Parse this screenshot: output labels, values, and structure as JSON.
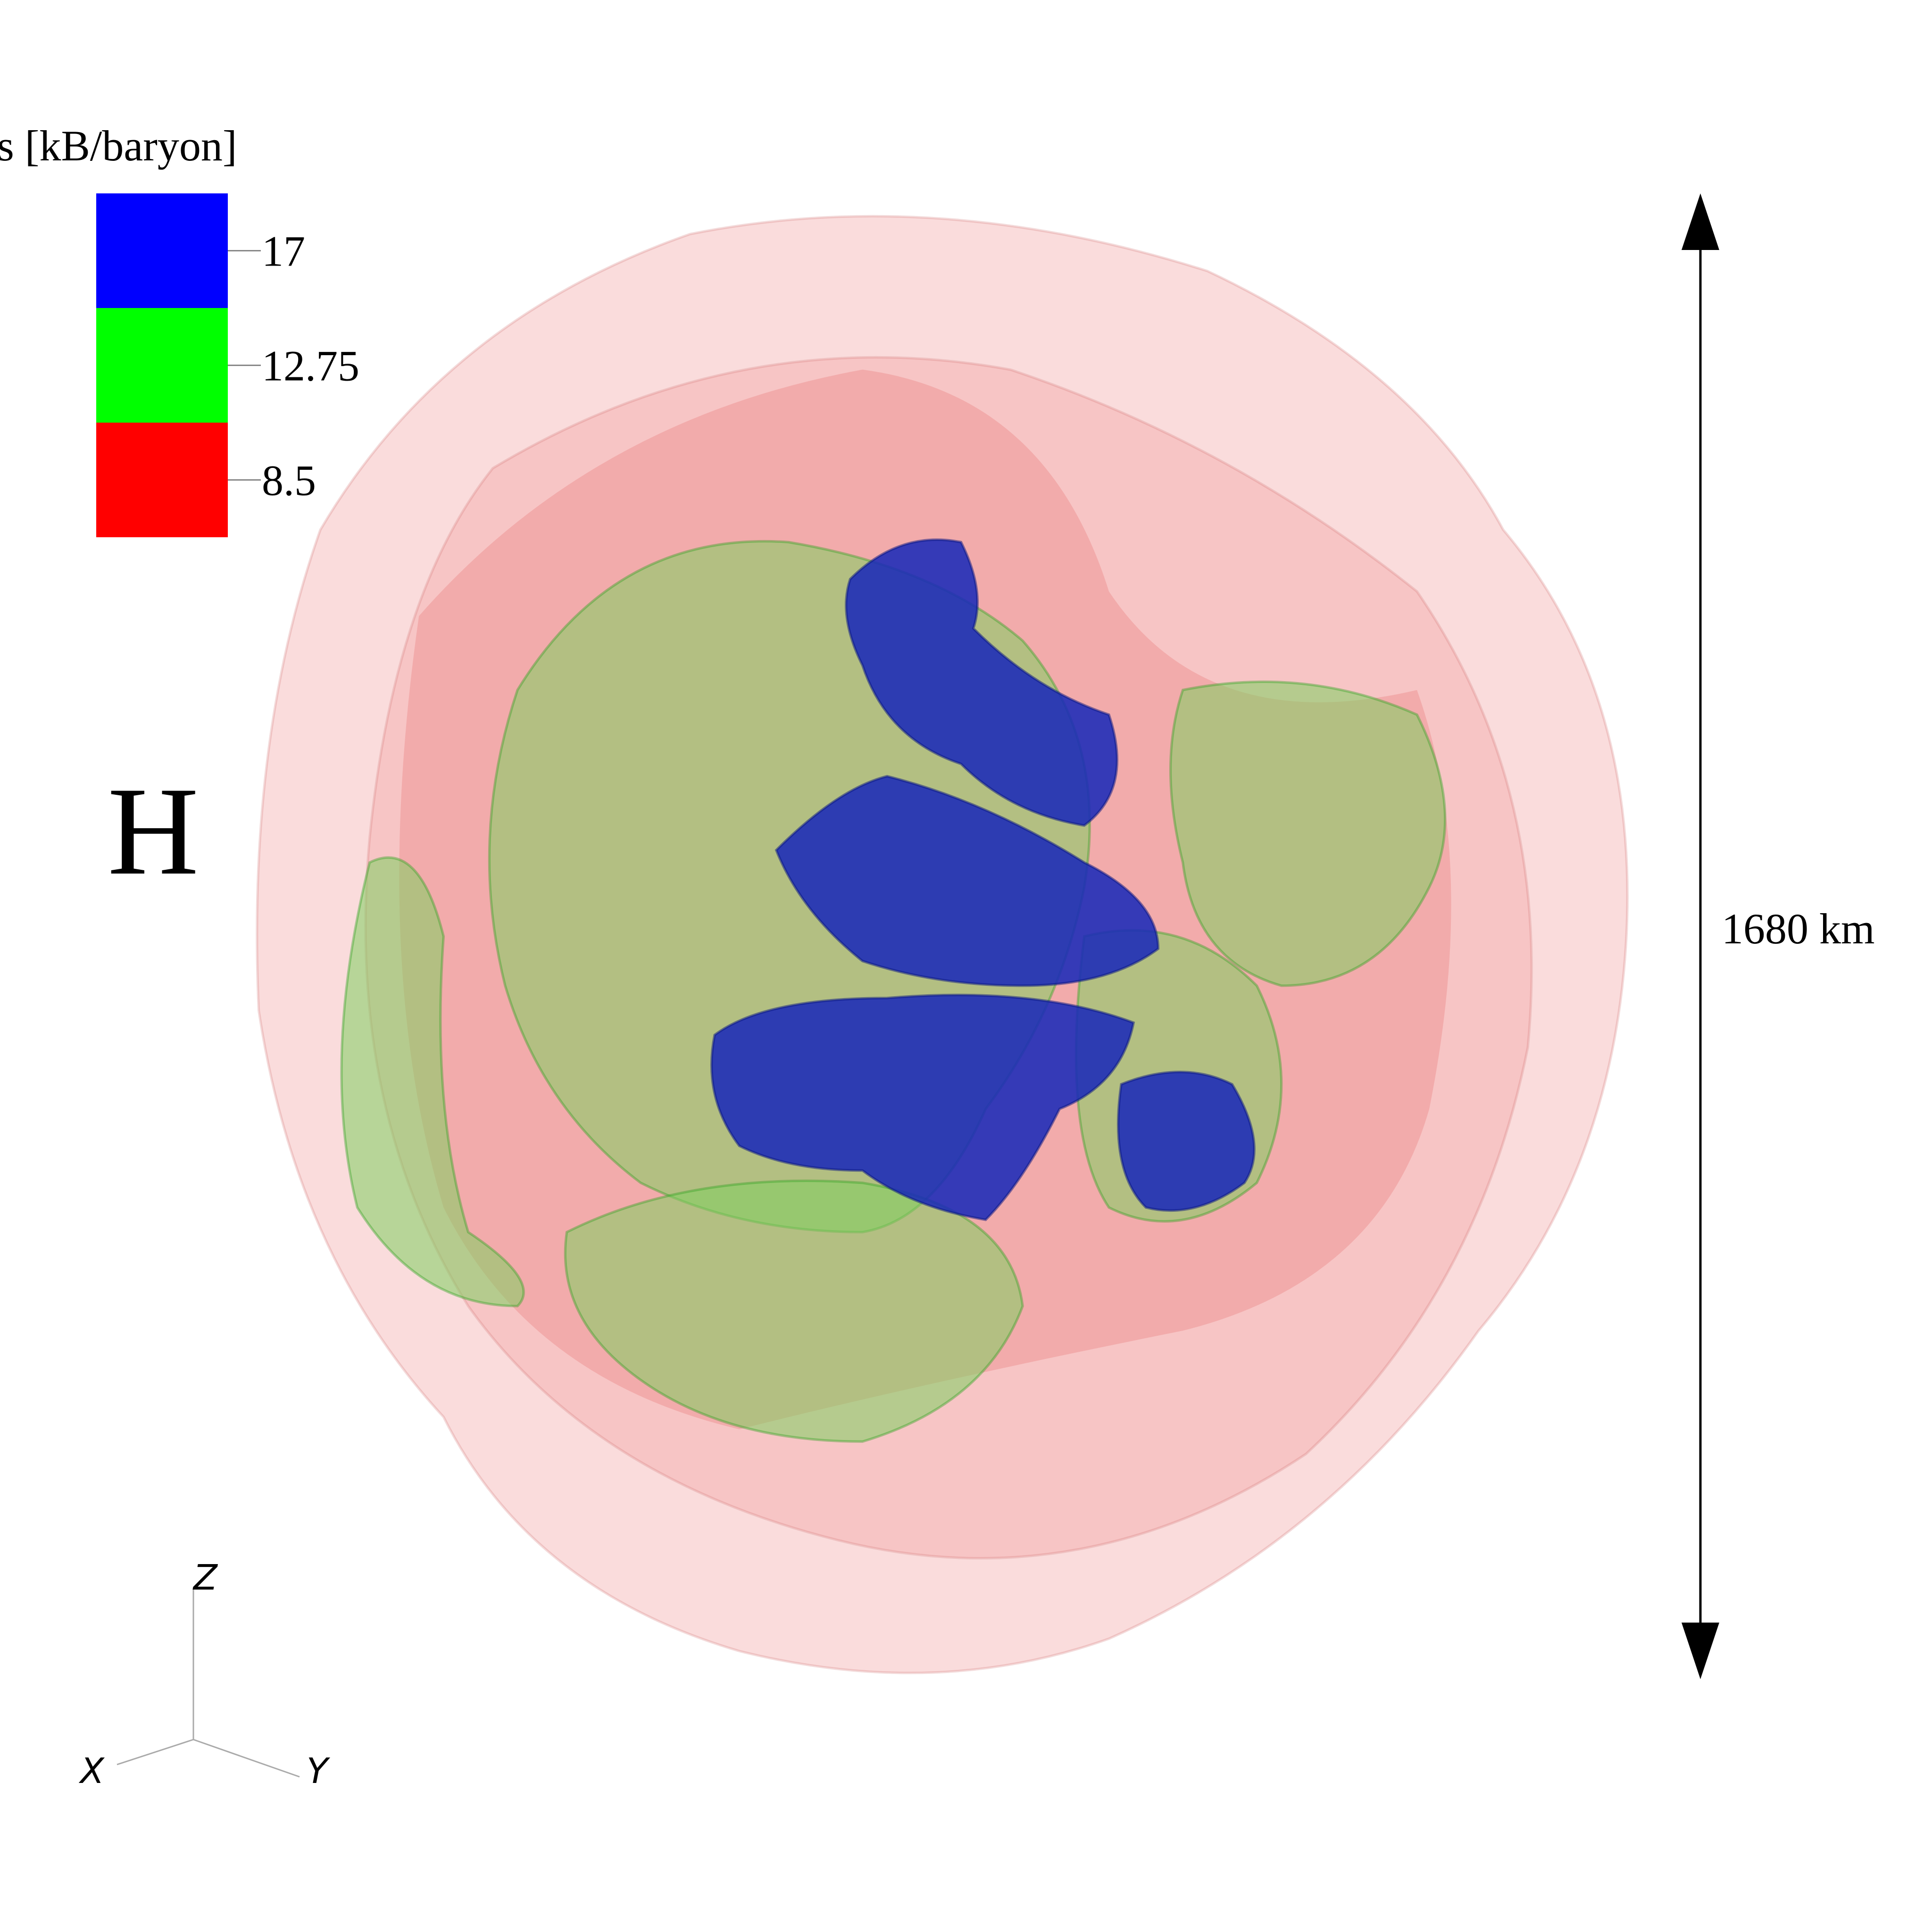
{
  "legend": {
    "title": "s [kB/baryon]",
    "entries": [
      {
        "label": "17",
        "color": "#0000ff"
      },
      {
        "label": "12.75",
        "color": "#00ff00"
      },
      {
        "label": "8.5",
        "color": "#ff0000"
      }
    ]
  },
  "panel_label": "H",
  "scale_bar": {
    "label": "1680 km"
  },
  "axes": {
    "z": "Z",
    "x": "X",
    "y": "Y"
  }
}
